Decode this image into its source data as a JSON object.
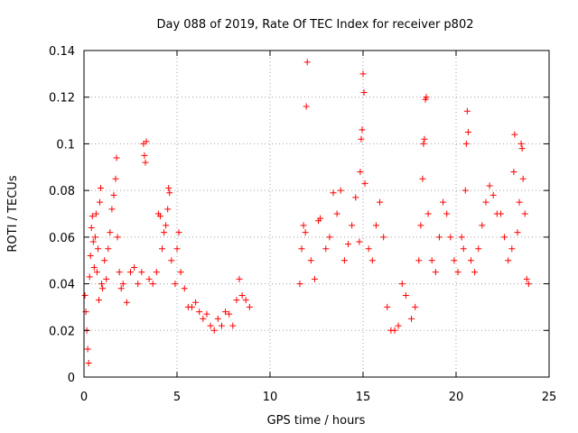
{
  "chart_data": {
    "type": "scatter",
    "title": "Day 088 of 2019, Rate Of TEC Index for receiver p802",
    "xlabel": "GPS time / hours",
    "ylabel": "ROTI / TECUs",
    "xlim": [
      0,
      25
    ],
    "ylim": [
      0,
      0.14
    ],
    "x_ticks": [
      0,
      5,
      10,
      15,
      20,
      25
    ],
    "x_tick_labels": [
      "0",
      "5",
      "10",
      "15",
      "20",
      "25"
    ],
    "y_ticks": [
      0,
      0.02,
      0.04,
      0.06,
      0.08,
      0.1,
      0.12,
      0.14
    ],
    "y_tick_labels": [
      "0",
      "0.02",
      "0.04",
      "0.06",
      "0.08",
      "0.1",
      "0.12",
      "0.14"
    ],
    "grid": true,
    "marker": "+",
    "marker_color": "#ff0000",
    "series": [
      {
        "name": "ROTI",
        "points": [
          [
            0.05,
            0.035
          ],
          [
            0.1,
            0.028
          ],
          [
            0.15,
            0.02
          ],
          [
            0.2,
            0.012
          ],
          [
            0.25,
            0.006
          ],
          [
            0.3,
            0.043
          ],
          [
            0.35,
            0.052
          ],
          [
            0.4,
            0.064
          ],
          [
            0.45,
            0.069
          ],
          [
            0.5,
            0.058
          ],
          [
            0.55,
            0.047
          ],
          [
            0.6,
            0.06
          ],
          [
            0.65,
            0.07
          ],
          [
            0.7,
            0.045
          ],
          [
            0.75,
            0.055
          ],
          [
            0.8,
            0.033
          ],
          [
            0.85,
            0.075
          ],
          [
            0.9,
            0.081
          ],
          [
            0.95,
            0.04
          ],
          [
            1.0,
            0.038
          ],
          [
            1.1,
            0.05
          ],
          [
            1.2,
            0.042
          ],
          [
            1.3,
            0.055
          ],
          [
            1.4,
            0.062
          ],
          [
            1.5,
            0.072
          ],
          [
            1.6,
            0.078
          ],
          [
            1.7,
            0.085
          ],
          [
            1.75,
            0.094
          ],
          [
            1.8,
            0.06
          ],
          [
            1.9,
            0.045
          ],
          [
            2.0,
            0.038
          ],
          [
            2.1,
            0.04
          ],
          [
            2.3,
            0.032
          ],
          [
            2.5,
            0.045
          ],
          [
            2.7,
            0.047
          ],
          [
            2.9,
            0.04
          ],
          [
            3.1,
            0.045
          ],
          [
            3.2,
            0.1
          ],
          [
            3.25,
            0.095
          ],
          [
            3.3,
            0.092
          ],
          [
            3.35,
            0.101
          ],
          [
            3.5,
            0.042
          ],
          [
            3.7,
            0.04
          ],
          [
            3.9,
            0.045
          ],
          [
            4.0,
            0.07
          ],
          [
            4.1,
            0.069
          ],
          [
            4.2,
            0.055
          ],
          [
            4.3,
            0.062
          ],
          [
            4.4,
            0.065
          ],
          [
            4.5,
            0.072
          ],
          [
            4.55,
            0.081
          ],
          [
            4.6,
            0.079
          ],
          [
            4.7,
            0.05
          ],
          [
            4.9,
            0.04
          ],
          [
            5.0,
            0.055
          ],
          [
            5.1,
            0.062
          ],
          [
            5.2,
            0.045
          ],
          [
            5.4,
            0.038
          ],
          [
            5.6,
            0.03
          ],
          [
            5.8,
            0.03
          ],
          [
            6.0,
            0.032
          ],
          [
            6.2,
            0.028
          ],
          [
            6.4,
            0.025
          ],
          [
            6.6,
            0.027
          ],
          [
            6.8,
            0.022
          ],
          [
            7.0,
            0.02
          ],
          [
            7.2,
            0.025
          ],
          [
            7.4,
            0.022
          ],
          [
            7.6,
            0.028
          ],
          [
            7.8,
            0.027
          ],
          [
            8.0,
            0.022
          ],
          [
            8.2,
            0.033
          ],
          [
            8.35,
            0.042
          ],
          [
            8.5,
            0.035
          ],
          [
            8.7,
            0.033
          ],
          [
            8.9,
            0.03
          ],
          [
            11.6,
            0.04
          ],
          [
            11.7,
            0.055
          ],
          [
            11.8,
            0.065
          ],
          [
            11.9,
            0.062
          ],
          [
            11.95,
            0.116
          ],
          [
            12.0,
            0.135
          ],
          [
            12.2,
            0.05
          ],
          [
            12.4,
            0.042
          ],
          [
            12.6,
            0.067
          ],
          [
            12.7,
            0.068
          ],
          [
            13.0,
            0.055
          ],
          [
            13.2,
            0.06
          ],
          [
            13.4,
            0.079
          ],
          [
            13.6,
            0.07
          ],
          [
            13.8,
            0.08
          ],
          [
            14.0,
            0.05
          ],
          [
            14.2,
            0.057
          ],
          [
            14.4,
            0.065
          ],
          [
            14.6,
            0.077
          ],
          [
            14.8,
            0.058
          ],
          [
            14.85,
            0.088
          ],
          [
            14.9,
            0.102
          ],
          [
            14.95,
            0.106
          ],
          [
            15.0,
            0.13
          ],
          [
            15.05,
            0.122
          ],
          [
            15.1,
            0.083
          ],
          [
            15.3,
            0.055
          ],
          [
            15.5,
            0.05
          ],
          [
            15.7,
            0.065
          ],
          [
            15.9,
            0.075
          ],
          [
            16.1,
            0.06
          ],
          [
            16.3,
            0.03
          ],
          [
            16.5,
            0.02
          ],
          [
            16.7,
            0.02
          ],
          [
            16.9,
            0.022
          ],
          [
            17.1,
            0.04
          ],
          [
            17.3,
            0.035
          ],
          [
            17.6,
            0.025
          ],
          [
            17.8,
            0.03
          ],
          [
            18.0,
            0.05
          ],
          [
            18.1,
            0.065
          ],
          [
            18.2,
            0.085
          ],
          [
            18.25,
            0.1
          ],
          [
            18.3,
            0.102
          ],
          [
            18.35,
            0.119
          ],
          [
            18.4,
            0.12
          ],
          [
            18.5,
            0.07
          ],
          [
            18.7,
            0.05
          ],
          [
            18.9,
            0.045
          ],
          [
            19.1,
            0.06
          ],
          [
            19.3,
            0.075
          ],
          [
            19.5,
            0.07
          ],
          [
            19.7,
            0.06
          ],
          [
            19.9,
            0.05
          ],
          [
            20.1,
            0.045
          ],
          [
            20.3,
            0.06
          ],
          [
            20.4,
            0.055
          ],
          [
            20.5,
            0.08
          ],
          [
            20.55,
            0.1
          ],
          [
            20.6,
            0.114
          ],
          [
            20.65,
            0.105
          ],
          [
            20.8,
            0.05
          ],
          [
            21.0,
            0.045
          ],
          [
            21.2,
            0.055
          ],
          [
            21.4,
            0.065
          ],
          [
            21.6,
            0.075
          ],
          [
            21.8,
            0.082
          ],
          [
            22.0,
            0.078
          ],
          [
            22.2,
            0.07
          ],
          [
            22.4,
            0.07
          ],
          [
            22.6,
            0.06
          ],
          [
            22.8,
            0.05
          ],
          [
            23.0,
            0.055
          ],
          [
            23.1,
            0.088
          ],
          [
            23.15,
            0.104
          ],
          [
            23.3,
            0.062
          ],
          [
            23.4,
            0.075
          ],
          [
            23.5,
            0.1
          ],
          [
            23.55,
            0.098
          ],
          [
            23.6,
            0.085
          ],
          [
            23.7,
            0.07
          ],
          [
            23.8,
            0.042
          ],
          [
            23.9,
            0.04
          ]
        ]
      }
    ]
  }
}
